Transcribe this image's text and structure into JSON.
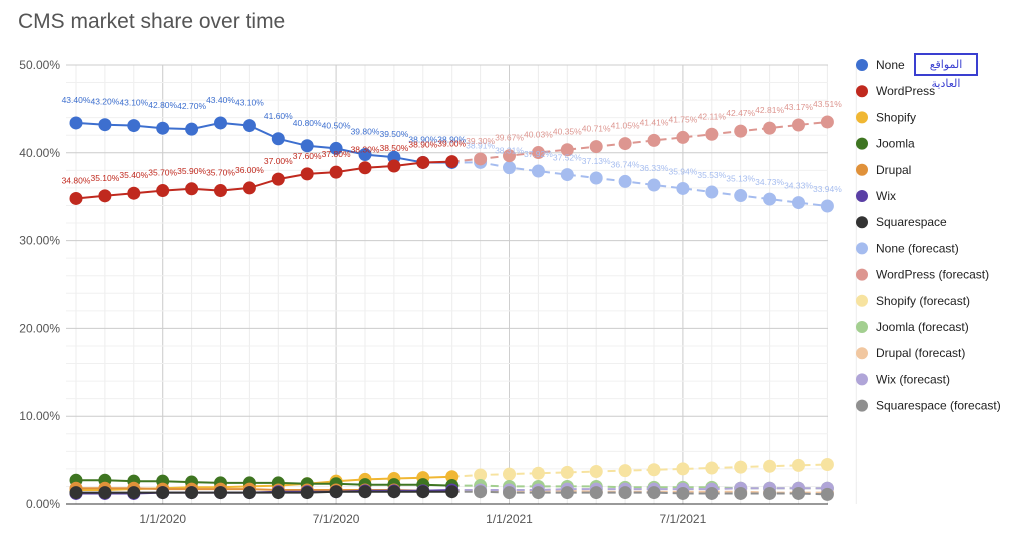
{
  "chart_data": {
    "type": "line",
    "title": "CMS market share over time",
    "xlabel": "",
    "ylabel": "",
    "ylim": [
      0,
      50
    ],
    "y_ticks": [
      "0.00%",
      "10.00%",
      "20.00%",
      "30.00%",
      "40.00%",
      "50.00%"
    ],
    "x_ticks": [
      "1/1/2020",
      "7/1/2020",
      "1/1/2021",
      "7/1/2021"
    ],
    "x": [
      "2019-10",
      "2019-11",
      "2019-12",
      "2020-01",
      "2020-02",
      "2020-03",
      "2020-04",
      "2020-05",
      "2020-06",
      "2020-07",
      "2020-08",
      "2020-09",
      "2020-10",
      "2020-11",
      "2020-12",
      "2021-01",
      "2021-02",
      "2021-03",
      "2021-04",
      "2021-05",
      "2021-06",
      "2021-07",
      "2021-08",
      "2021-09",
      "2021-10",
      "2021-11",
      "2021-12",
      "2022-01"
    ],
    "grid": true,
    "legend_position": "right",
    "series": [
      {
        "name": "None",
        "color": "#3d6fcf",
        "dash": false,
        "show_labels": true,
        "values": [
          43.4,
          43.2,
          43.1,
          42.8,
          42.7,
          43.4,
          43.1,
          41.6,
          40.8,
          40.5,
          39.8,
          39.5,
          38.9,
          38.9,
          null,
          null,
          null,
          null,
          null,
          null,
          null,
          null,
          null,
          null,
          null,
          null,
          null,
          null
        ]
      },
      {
        "name": "WordPress",
        "color": "#c0291e",
        "dash": false,
        "show_labels": true,
        "values": [
          34.8,
          35.1,
          35.4,
          35.7,
          35.9,
          35.7,
          36.0,
          37.0,
          37.6,
          37.8,
          38.3,
          38.5,
          38.9,
          39.0,
          null,
          null,
          null,
          null,
          null,
          null,
          null,
          null,
          null,
          null,
          null,
          null,
          null,
          null
        ]
      },
      {
        "name": "Shopify",
        "color": "#f0b733",
        "dash": false,
        "show_labels": false,
        "values": [
          1.6,
          1.6,
          1.7,
          1.8,
          1.9,
          1.9,
          2.0,
          2.1,
          2.3,
          2.6,
          2.8,
          2.9,
          3.0,
          3.1,
          null,
          null,
          null,
          null,
          null,
          null,
          null,
          null,
          null,
          null,
          null,
          null,
          null,
          null
        ]
      },
      {
        "name": "Joomla",
        "color": "#3e7521",
        "dash": false,
        "show_labels": false,
        "values": [
          2.7,
          2.7,
          2.6,
          2.6,
          2.5,
          2.4,
          2.4,
          2.4,
          2.3,
          2.3,
          2.2,
          2.2,
          2.2,
          2.1,
          null,
          null,
          null,
          null,
          null,
          null,
          null,
          null,
          null,
          null,
          null,
          null,
          null,
          null
        ]
      },
      {
        "name": "Drupal",
        "color": "#e0913a",
        "dash": false,
        "show_labels": false,
        "values": [
          1.8,
          1.8,
          1.8,
          1.7,
          1.7,
          1.7,
          1.7,
          1.6,
          1.6,
          1.6,
          1.6,
          1.6,
          1.5,
          1.5,
          null,
          null,
          null,
          null,
          null,
          null,
          null,
          null,
          null,
          null,
          null,
          null,
          null,
          null
        ]
      },
      {
        "name": "Wix",
        "color": "#5a3fa5",
        "dash": false,
        "show_labels": false,
        "values": [
          1.2,
          1.2,
          1.2,
          1.3,
          1.3,
          1.3,
          1.3,
          1.4,
          1.4,
          1.4,
          1.5,
          1.5,
          1.5,
          1.6,
          null,
          null,
          null,
          null,
          null,
          null,
          null,
          null,
          null,
          null,
          null,
          null,
          null,
          null
        ]
      },
      {
        "name": "Squarespace",
        "color": "#333333",
        "dash": false,
        "show_labels": false,
        "values": [
          1.3,
          1.3,
          1.3,
          1.3,
          1.3,
          1.3,
          1.3,
          1.3,
          1.3,
          1.4,
          1.4,
          1.4,
          1.4,
          1.4,
          null,
          null,
          null,
          null,
          null,
          null,
          null,
          null,
          null,
          null,
          null,
          null,
          null,
          null
        ]
      },
      {
        "name": "None (forecast)",
        "color": "#a5bcef",
        "dash": true,
        "show_labels": true,
        "values": [
          null,
          null,
          null,
          null,
          null,
          null,
          null,
          null,
          null,
          null,
          null,
          null,
          null,
          38.9,
          38.91,
          38.31,
          37.92,
          37.52,
          37.13,
          36.74,
          36.33,
          35.94,
          35.53,
          35.13,
          34.73,
          34.33,
          33.94,
          null
        ]
      },
      {
        "name": "WordPress (forecast)",
        "color": "#dd9690",
        "dash": true,
        "show_labels": true,
        "values": [
          null,
          null,
          null,
          null,
          null,
          null,
          null,
          null,
          null,
          null,
          null,
          null,
          null,
          39.0,
          39.3,
          39.67,
          40.03,
          40.35,
          40.71,
          41.05,
          41.41,
          41.75,
          42.11,
          42.47,
          42.81,
          43.17,
          43.51,
          null
        ]
      },
      {
        "name": "Shopify (forecast)",
        "color": "#f7e3a0",
        "dash": true,
        "show_labels": false,
        "values": [
          null,
          null,
          null,
          null,
          null,
          null,
          null,
          null,
          null,
          null,
          null,
          null,
          null,
          3.1,
          3.3,
          3.4,
          3.5,
          3.6,
          3.7,
          3.8,
          3.9,
          4.0,
          4.1,
          4.2,
          4.3,
          4.4,
          4.5,
          null
        ]
      },
      {
        "name": "Joomla (forecast)",
        "color": "#a3cf90",
        "dash": true,
        "show_labels": false,
        "values": [
          null,
          null,
          null,
          null,
          null,
          null,
          null,
          null,
          null,
          null,
          null,
          null,
          null,
          2.1,
          2.1,
          2.0,
          2.0,
          2.0,
          2.0,
          1.9,
          1.9,
          1.9,
          1.9,
          1.8,
          1.8,
          1.8,
          1.8,
          null
        ]
      },
      {
        "name": "Drupal (forecast)",
        "color": "#f1c7a0",
        "dash": true,
        "show_labels": false,
        "values": [
          null,
          null,
          null,
          null,
          null,
          null,
          null,
          null,
          null,
          null,
          null,
          null,
          null,
          1.5,
          1.5,
          1.5,
          1.5,
          1.5,
          1.4,
          1.4,
          1.4,
          1.4,
          1.4,
          1.4,
          1.3,
          1.3,
          1.3,
          null
        ]
      },
      {
        "name": "Wix (forecast)",
        "color": "#b0a5d8",
        "dash": true,
        "show_labels": false,
        "values": [
          null,
          null,
          null,
          null,
          null,
          null,
          null,
          null,
          null,
          null,
          null,
          null,
          null,
          1.6,
          1.6,
          1.6,
          1.6,
          1.7,
          1.7,
          1.7,
          1.7,
          1.7,
          1.7,
          1.8,
          1.8,
          1.8,
          1.8,
          null
        ]
      },
      {
        "name": "Squarespace (forecast)",
        "color": "#8f8f8f",
        "dash": true,
        "show_labels": false,
        "values": [
          null,
          null,
          null,
          null,
          null,
          null,
          null,
          null,
          null,
          null,
          null,
          null,
          null,
          1.4,
          1.4,
          1.3,
          1.3,
          1.3,
          1.3,
          1.3,
          1.3,
          1.2,
          1.2,
          1.2,
          1.2,
          1.2,
          1.1,
          null
        ]
      }
    ],
    "annotation": "المواقع العادية"
  }
}
